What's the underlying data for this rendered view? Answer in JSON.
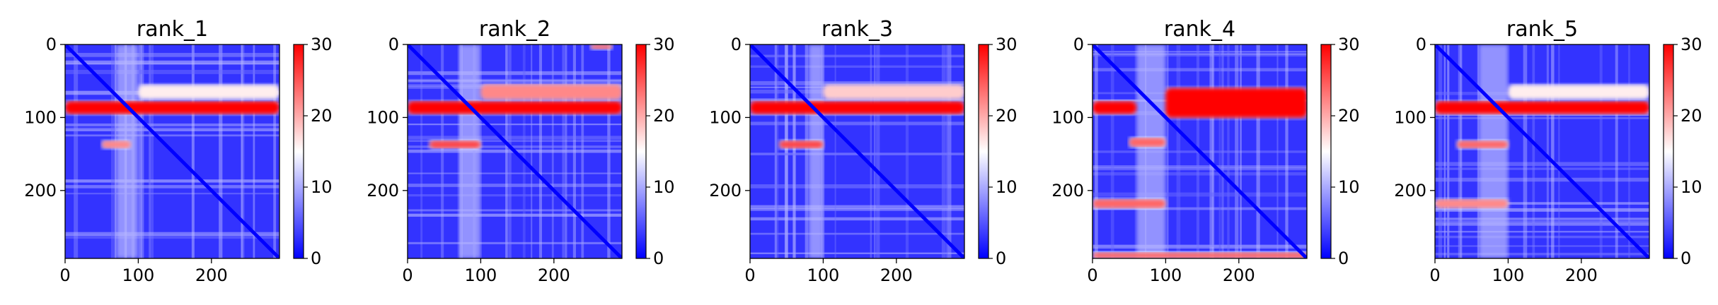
{
  "chart_data": {
    "type": "heatmap",
    "shared": {
      "x_range": [
        0,
        293
      ],
      "y_range": [
        0,
        293
      ],
      "y_inverted": true,
      "x_ticks": [
        0,
        100,
        200
      ],
      "y_ticks": [
        0,
        100,
        200
      ],
      "colorbar": {
        "colormap": "bwr",
        "range": [
          0,
          30
        ],
        "ticks": [
          0,
          10,
          20,
          30
        ],
        "colors": {
          "low": "#0000ff",
          "mid": "#ffffff",
          "high": "#ff0000"
        }
      }
    },
    "panels": [
      {
        "title": "rank_1",
        "high_error_bands": [
          {
            "y_from": 78,
            "y_to": 95,
            "x_from": 0,
            "x_to": 293,
            "peak": 30
          },
          {
            "y_from": 55,
            "y_to": 75,
            "x_from": 100,
            "x_to": 293,
            "peak": 16
          },
          {
            "y_from": 132,
            "y_to": 142,
            "x_from": 50,
            "x_to": 90,
            "peak": 22
          }
        ],
        "light_column": {
          "x_from": 70,
          "x_to": 100
        }
      },
      {
        "title": "rank_2",
        "high_error_bands": [
          {
            "y_from": 78,
            "y_to": 95,
            "x_from": 0,
            "x_to": 293,
            "peak": 30
          },
          {
            "y_from": 55,
            "y_to": 75,
            "x_from": 100,
            "x_to": 293,
            "peak": 22
          },
          {
            "y_from": 132,
            "y_to": 142,
            "x_from": 30,
            "x_to": 100,
            "peak": 26
          },
          {
            "y_from": 0,
            "y_to": 6,
            "x_from": 250,
            "x_to": 280,
            "peak": 24
          }
        ],
        "light_column": {
          "x_from": 70,
          "x_to": 100
        }
      },
      {
        "title": "rank_3",
        "high_error_bands": [
          {
            "y_from": 78,
            "y_to": 95,
            "x_from": 0,
            "x_to": 293,
            "peak": 30
          },
          {
            "y_from": 55,
            "y_to": 75,
            "x_from": 100,
            "x_to": 293,
            "peak": 18
          },
          {
            "y_from": 132,
            "y_to": 142,
            "x_from": 40,
            "x_to": 100,
            "peak": 26
          }
        ],
        "light_column": {
          "x_from": 80,
          "x_to": 100
        }
      },
      {
        "title": "rank_4",
        "high_error_bands": [
          {
            "y_from": 60,
            "y_to": 100,
            "x_from": 100,
            "x_to": 293,
            "peak": 30
          },
          {
            "y_from": 78,
            "y_to": 95,
            "x_from": 0,
            "x_to": 60,
            "peak": 30
          },
          {
            "y_from": 128,
            "y_to": 140,
            "x_from": 50,
            "x_to": 100,
            "peak": 24
          },
          {
            "y_from": 212,
            "y_to": 224,
            "x_from": 0,
            "x_to": 100,
            "peak": 24
          },
          {
            "y_from": 285,
            "y_to": 293,
            "x_from": 0,
            "x_to": 293,
            "peak": 24
          }
        ],
        "light_column": {
          "x_from": 60,
          "x_to": 100
        }
      },
      {
        "title": "rank_5",
        "high_error_bands": [
          {
            "y_from": 78,
            "y_to": 95,
            "x_from": 0,
            "x_to": 293,
            "peak": 30
          },
          {
            "y_from": 55,
            "y_to": 75,
            "x_from": 100,
            "x_to": 293,
            "peak": 16
          },
          {
            "y_from": 132,
            "y_to": 142,
            "x_from": 30,
            "x_to": 100,
            "peak": 24
          },
          {
            "y_from": 212,
            "y_to": 224,
            "x_from": 0,
            "x_to": 100,
            "peak": 22
          }
        ],
        "light_column": {
          "x_from": 60,
          "x_to": 100
        }
      }
    ]
  }
}
